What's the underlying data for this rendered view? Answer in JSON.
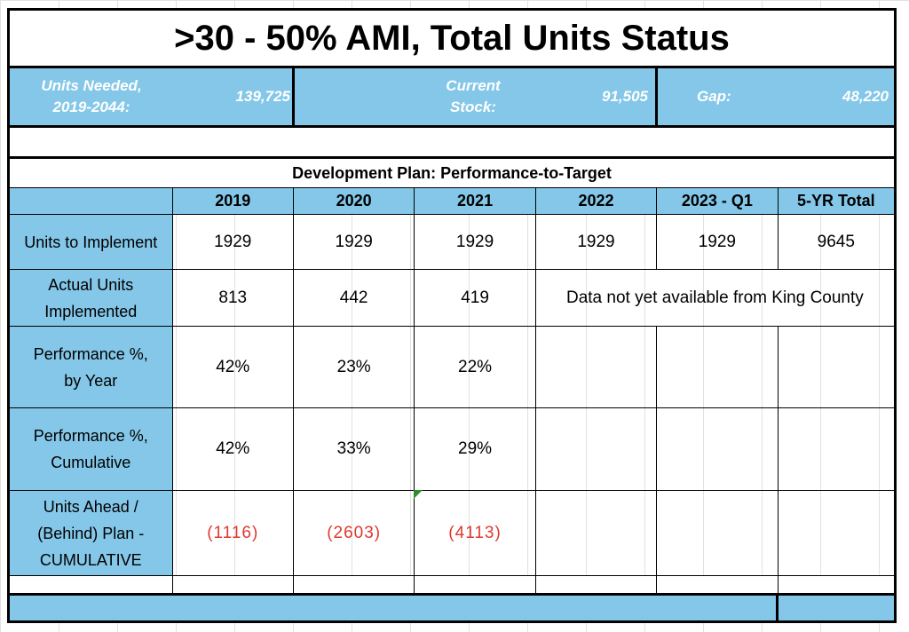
{
  "title": ">30 - 50% AMI, Total Units Status",
  "summary": {
    "units_needed_label_line1": "Units Needed,",
    "units_needed_label_line2": "2019-2044:",
    "units_needed_value": "139,725",
    "current_stock_label_line1": "Current",
    "current_stock_label_line2": "Stock:",
    "current_stock_value": "91,505",
    "gap_label": "Gap:",
    "gap_value": "48,220"
  },
  "plan": {
    "title": "Development Plan:  Performance-to-Target",
    "columns": [
      "2019",
      "2020",
      "2021",
      "2022",
      "2023 - Q1",
      "5-YR Total"
    ],
    "rows": {
      "units_to_implement": {
        "label": "Units to Implement",
        "values": [
          "1929",
          "1929",
          "1929",
          "1929",
          "1929",
          "9645"
        ]
      },
      "actual_units": {
        "label_line1": "Actual Units",
        "label_line2": "Implemented",
        "values": [
          "813",
          "442",
          "419"
        ],
        "note": "Data not yet available from King County"
      },
      "performance_year": {
        "label_line1": "Performance %,",
        "label_line2": "by Year",
        "values": [
          "42%",
          "23%",
          "22%"
        ]
      },
      "performance_cumulative": {
        "label_line1": "Performance %,",
        "label_line2": "Cumulative",
        "values": [
          "42%",
          "33%",
          "29%"
        ]
      },
      "units_ahead": {
        "label_line1": "Units Ahead /",
        "label_line2": "(Behind) Plan -",
        "label_line3": "CUMULATIVE",
        "values": [
          "(1116)",
          "(2603)",
          "(4113)"
        ]
      }
    }
  },
  "colors": {
    "header_blue": "#84c7e8",
    "negative_red": "#e0382f",
    "comment_marker_green": "#2e8b2e"
  }
}
